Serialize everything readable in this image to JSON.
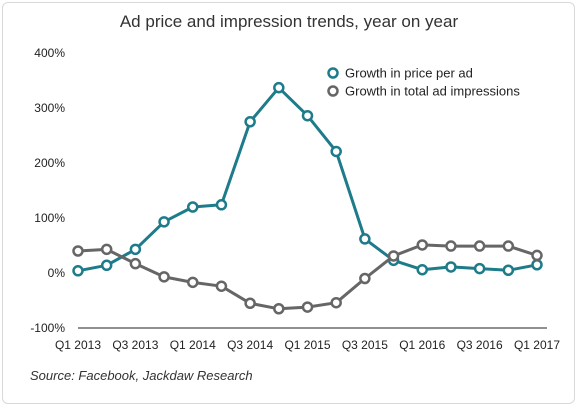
{
  "chart_data": {
    "type": "line",
    "title": "Ad price and impression trends, year on year",
    "x_tick_labels": [
      "Q1 2013",
      "Q3 2013",
      "Q1 2014",
      "Q3 2014",
      "Q1 2015",
      "Q3 2015",
      "Q1 2016",
      "Q3 2016",
      "Q1 2017"
    ],
    "categories": [
      "Q1 2013",
      "Q2 2013",
      "Q3 2013",
      "Q4 2013",
      "Q1 2014",
      "Q2 2014",
      "Q3 2014",
      "Q4 2014",
      "Q1 2015",
      "Q2 2015",
      "Q3 2015",
      "Q4 2015",
      "Q1 2016",
      "Q2 2016",
      "Q3 2016",
      "Q4 2016",
      "Q1 2017"
    ],
    "y_tick_labels": [
      "400%",
      "300%",
      "200%",
      "100%",
      "0%",
      "-100%"
    ],
    "ylim": [
      -100,
      400
    ],
    "series": [
      {
        "name": "Growth in price per ad",
        "color": "#1e7b8a",
        "values": [
          4,
          14,
          43,
          93,
          120,
          124,
          275,
          337,
          286,
          221,
          62,
          23,
          6,
          11,
          8,
          5,
          15
        ]
      },
      {
        "name": "Growth in total ad impressions",
        "color": "#666666",
        "values": [
          40,
          43,
          17,
          -7,
          -17,
          -24,
          -55,
          -65,
          -62,
          -54,
          -10,
          31,
          51,
          49,
          49,
          49,
          32
        ]
      }
    ],
    "legend_position": "top-right",
    "grid": false
  },
  "source": "Source: Facebook, Jackdaw Research"
}
